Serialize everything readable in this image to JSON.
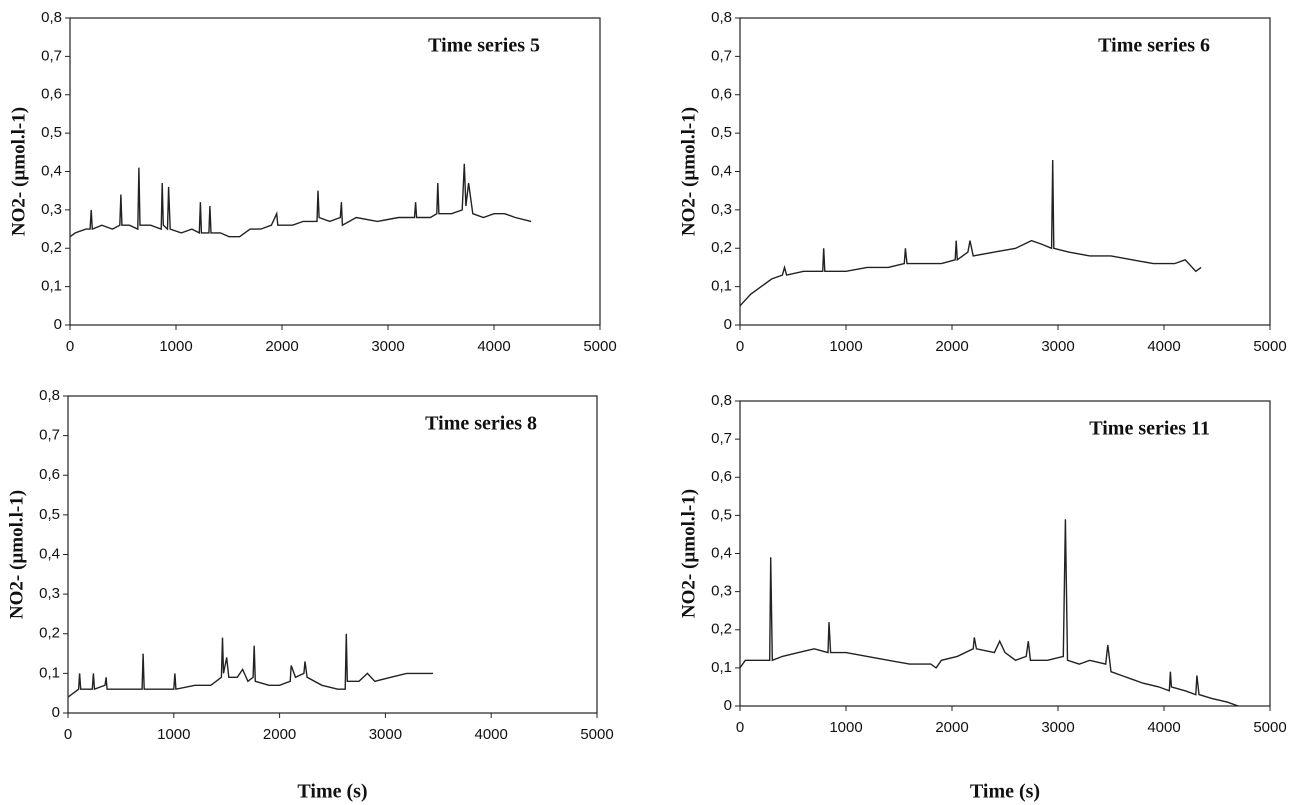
{
  "chart_data": [
    {
      "type": "line",
      "title": "Time series 5",
      "ylabel": "NO2- (µmol.l-1)",
      "x": [
        0,
        50,
        150,
        190,
        200,
        210,
        300,
        400,
        470,
        480,
        490,
        560,
        640,
        650,
        660,
        760,
        860,
        870,
        880,
        920,
        930,
        945,
        1050,
        1150,
        1220,
        1230,
        1240,
        1310,
        1320,
        1330,
        1420,
        1500,
        1600,
        1700,
        1800,
        1900,
        1950,
        1960,
        2100,
        2200,
        2330,
        2340,
        2350,
        2450,
        2550,
        2560,
        2570,
        2700,
        2900,
        3100,
        3250,
        3260,
        3270,
        3400,
        3460,
        3470,
        3480,
        3600,
        3700,
        3720,
        3735,
        3760,
        3800,
        3900,
        4000,
        4100,
        4200,
        4350
      ],
      "values": [
        0.23,
        0.24,
        0.25,
        0.25,
        0.3,
        0.25,
        0.26,
        0.25,
        0.26,
        0.34,
        0.26,
        0.26,
        0.25,
        0.41,
        0.26,
        0.26,
        0.25,
        0.37,
        0.26,
        0.25,
        0.36,
        0.25,
        0.24,
        0.25,
        0.24,
        0.32,
        0.24,
        0.24,
        0.31,
        0.24,
        0.24,
        0.23,
        0.23,
        0.25,
        0.25,
        0.26,
        0.29,
        0.26,
        0.26,
        0.27,
        0.27,
        0.35,
        0.28,
        0.27,
        0.28,
        0.32,
        0.26,
        0.28,
        0.27,
        0.28,
        0.28,
        0.32,
        0.28,
        0.28,
        0.29,
        0.37,
        0.29,
        0.29,
        0.3,
        0.42,
        0.31,
        0.37,
        0.29,
        0.28,
        0.29,
        0.29,
        0.28,
        0.27
      ],
      "color": "#222222",
      "xlim": [
        0,
        5000
      ],
      "ylim": [
        0,
        0.8
      ],
      "xticks": [
        0,
        1000,
        2000,
        3000,
        4000,
        5000
      ],
      "yticks": [
        0,
        {
          "value": 0.1,
          "label": "0,1"
        },
        {
          "value": 0.2,
          "label": "0,2"
        },
        {
          "value": 0.3,
          "label": "0,3"
        },
        {
          "value": 0.4,
          "label": "0,4"
        },
        {
          "value": 0.5,
          "label": "0,5"
        },
        {
          "value": 0.6,
          "label": "0,6"
        },
        {
          "value": 0.7,
          "label": "0,7"
        },
        {
          "value": 0.8,
          "label": "0,8"
        }
      ]
    },
    {
      "type": "line",
      "title": "Time series 6",
      "ylabel": "NO2- (µmol.l-1)",
      "x": [
        0,
        100,
        200,
        300,
        400,
        420,
        440,
        600,
        780,
        790,
        800,
        1000,
        1200,
        1400,
        1550,
        1560,
        1575,
        1700,
        1900,
        2030,
        2040,
        2050,
        2150,
        2170,
        2200,
        2400,
        2600,
        2750,
        2850,
        2940,
        2950,
        2960,
        3100,
        3300,
        3500,
        3700,
        3900,
        4100,
        4200,
        4300,
        4350
      ],
      "values": [
        0.05,
        0.08,
        0.1,
        0.12,
        0.13,
        0.15,
        0.13,
        0.14,
        0.14,
        0.2,
        0.14,
        0.14,
        0.15,
        0.15,
        0.16,
        0.2,
        0.16,
        0.16,
        0.16,
        0.17,
        0.22,
        0.17,
        0.19,
        0.22,
        0.18,
        0.19,
        0.2,
        0.22,
        0.21,
        0.2,
        0.43,
        0.2,
        0.19,
        0.18,
        0.18,
        0.17,
        0.16,
        0.16,
        0.17,
        0.14,
        0.15
      ],
      "color": "#222222",
      "xlim": [
        0,
        5000
      ],
      "ylim": [
        0,
        0.8
      ],
      "xticks": [
        0,
        1000,
        2000,
        3000,
        4000,
        5000
      ],
      "yticks": [
        0,
        {
          "value": 0.1,
          "label": "0,1"
        },
        {
          "value": 0.2,
          "label": "0,2"
        },
        {
          "value": 0.3,
          "label": "0,3"
        },
        {
          "value": 0.4,
          "label": "0,4"
        },
        {
          "value": 0.5,
          "label": "0,5"
        },
        {
          "value": 0.6,
          "label": "0,6"
        },
        {
          "value": 0.7,
          "label": "0,7"
        },
        {
          "value": 0.8,
          "label": "0,8"
        }
      ]
    },
    {
      "type": "line",
      "title": "Time series 8",
      "ylabel": "NO2- (µmol.l-1)",
      "xlabel": "Time (s)",
      "x": [
        0,
        50,
        100,
        110,
        120,
        230,
        240,
        250,
        350,
        360,
        370,
        500,
        600,
        700,
        710,
        720,
        850,
        1000,
        1010,
        1020,
        1200,
        1350,
        1450,
        1460,
        1470,
        1500,
        1520,
        1600,
        1650,
        1700,
        1750,
        1760,
        1770,
        1900,
        2000,
        2100,
        2110,
        2150,
        2230,
        2240,
        2260,
        2400,
        2550,
        2620,
        2630,
        2640,
        2750,
        2830,
        2900,
        3050,
        3200,
        3350,
        3450
      ],
      "values": [
        0.04,
        0.05,
        0.06,
        0.1,
        0.06,
        0.06,
        0.1,
        0.06,
        0.07,
        0.09,
        0.06,
        0.06,
        0.06,
        0.06,
        0.15,
        0.06,
        0.06,
        0.06,
        0.1,
        0.06,
        0.07,
        0.07,
        0.09,
        0.19,
        0.1,
        0.14,
        0.09,
        0.09,
        0.11,
        0.08,
        0.09,
        0.17,
        0.08,
        0.07,
        0.07,
        0.08,
        0.12,
        0.09,
        0.1,
        0.13,
        0.09,
        0.07,
        0.06,
        0.06,
        0.2,
        0.08,
        0.08,
        0.1,
        0.08,
        0.09,
        0.1,
        0.1,
        0.1
      ],
      "color": "#222222",
      "xlim": [
        0,
        5000
      ],
      "ylim": [
        0,
        0.8
      ],
      "xticks": [
        0,
        1000,
        2000,
        3000,
        4000,
        5000
      ],
      "yticks": [
        0,
        {
          "value": 0.1,
          "label": "0,1"
        },
        {
          "value": 0.2,
          "label": "0,2"
        },
        {
          "value": 0.3,
          "label": "0,3"
        },
        {
          "value": 0.4,
          "label": "0,4"
        },
        {
          "value": 0.5,
          "label": "0,5"
        },
        {
          "value": 0.6,
          "label": "0,6"
        },
        {
          "value": 0.7,
          "label": "0,7"
        },
        {
          "value": 0.8,
          "label": "0,8"
        }
      ]
    },
    {
      "type": "line",
      "title": "Time series 11",
      "ylabel": "NO2- (µmol.l-1)",
      "xlabel": "Time (s)",
      "x": [
        0,
        50,
        200,
        280,
        290,
        305,
        400,
        550,
        700,
        830,
        840,
        855,
        1000,
        1200,
        1400,
        1600,
        1800,
        1850,
        1900,
        2050,
        2200,
        2210,
        2230,
        2400,
        2450,
        2500,
        2600,
        2700,
        2720,
        2740,
        2900,
        3050,
        3070,
        3090,
        3200,
        3300,
        3450,
        3470,
        3500,
        3600,
        3700,
        3800,
        3950,
        4050,
        4060,
        4070,
        4200,
        4300,
        4310,
        4330,
        4450,
        4600,
        4700
      ],
      "values": [
        0.1,
        0.12,
        0.12,
        0.12,
        0.39,
        0.12,
        0.13,
        0.14,
        0.15,
        0.14,
        0.22,
        0.14,
        0.14,
        0.13,
        0.12,
        0.11,
        0.11,
        0.1,
        0.12,
        0.13,
        0.15,
        0.18,
        0.15,
        0.14,
        0.17,
        0.14,
        0.12,
        0.13,
        0.17,
        0.12,
        0.12,
        0.13,
        0.49,
        0.12,
        0.11,
        0.12,
        0.11,
        0.16,
        0.09,
        0.08,
        0.07,
        0.06,
        0.05,
        0.04,
        0.09,
        0.05,
        0.04,
        0.03,
        0.08,
        0.03,
        0.02,
        0.01,
        0.0
      ],
      "color": "#222222",
      "xlim": [
        0,
        5000
      ],
      "ylim": [
        0,
        0.8
      ],
      "xticks": [
        0,
        1000,
        2000,
        3000,
        4000,
        5000
      ],
      "yticks": [
        0,
        {
          "value": 0.1,
          "label": "0,1"
        },
        {
          "value": 0.2,
          "label": "0,2"
        },
        {
          "value": 0.3,
          "label": "0,3"
        },
        {
          "value": 0.4,
          "label": "0,4"
        },
        {
          "value": 0.5,
          "label": "0,5"
        },
        {
          "value": 0.6,
          "label": "0,6"
        },
        {
          "value": 0.7,
          "label": "0,7"
        },
        {
          "value": 0.8,
          "label": "0,8"
        }
      ]
    }
  ]
}
